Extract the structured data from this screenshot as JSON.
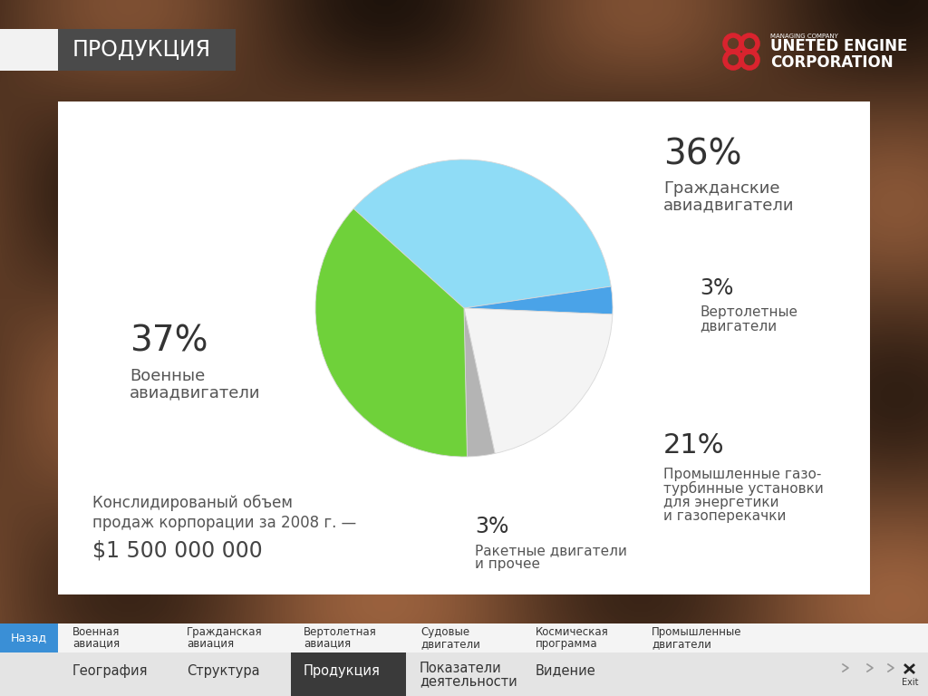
{
  "chart_data": {
    "type": "pie",
    "categories": [
      "Гражданские\nавиадвигатели",
      "Вертолетные\nдвигатели",
      "Промышленные газо-\nтурбинные установки\nдля энергетики\nи газоперекачки",
      "Ракетные двигатели\nи прочее",
      "Военные\nавиадвигатели"
    ],
    "values": [
      36,
      3,
      21,
      3,
      37
    ],
    "value_labels": [
      "36%",
      "3%",
      "21%",
      "3%",
      "37%"
    ],
    "colors": [
      "#8fdcf6",
      "#4aa3e8",
      "#f4f4f4",
      "#b4b4b4",
      "#6fd13a"
    ],
    "data_labels": true
  },
  "header": {
    "title": "ПРОДУКЦИЯ"
  },
  "logo": {
    "tagline": "MANAGING COMPANY",
    "name": "UNETED ENGINE\nCORPORATION"
  },
  "note": {
    "text": "Конслидированый объем\nпродаж корпорации за 2008 г. —",
    "amount": "$1 500 000 000"
  },
  "nav": {
    "back": "Назад",
    "submenu": [
      "Военная\nавиация",
      "Гражданская\nавиация",
      "Вертолетная\nавиация",
      "Судовые\nдвигатели",
      "Космическая\nпрограмма",
      "Промышленные\nдвигатели"
    ],
    "menu": [
      "География",
      "Структура",
      "Продукция",
      "Показатели\nдеятельности",
      "Видение"
    ],
    "active": "Продукция",
    "exit": "Exit"
  }
}
